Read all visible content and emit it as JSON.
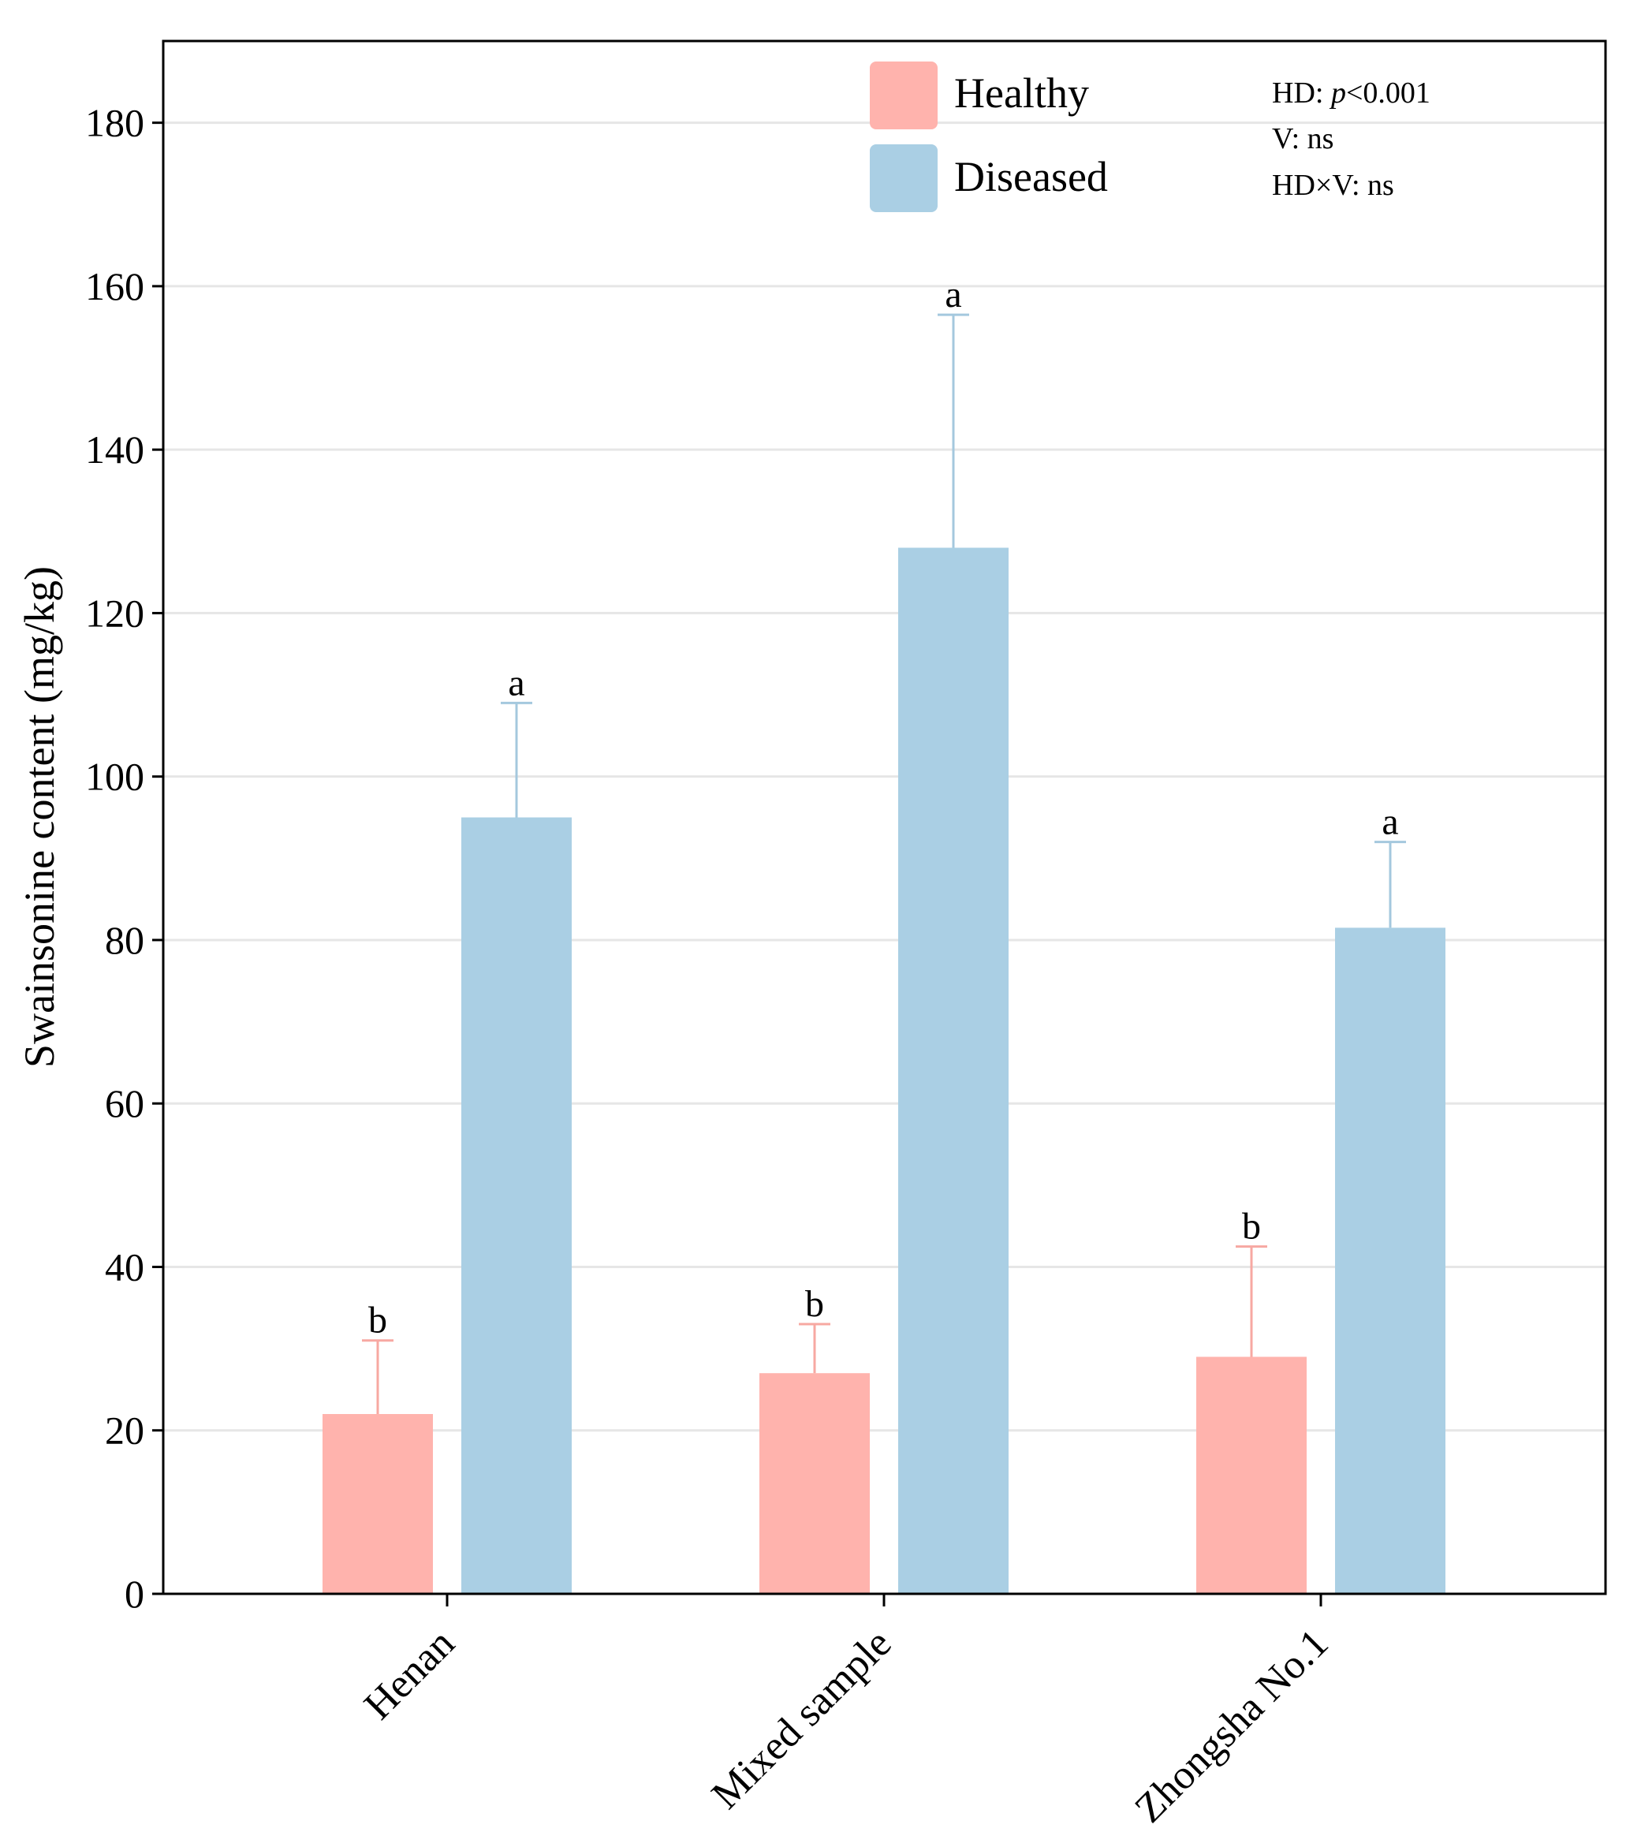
{
  "chart_data": {
    "type": "bar",
    "title": "",
    "xlabel": "",
    "ylabel": "Swainsonine content (mg/kg)",
    "ylim": [
      0,
      190
    ],
    "yticks": [
      0,
      20,
      40,
      60,
      80,
      100,
      120,
      140,
      160,
      180
    ],
    "grid": true,
    "legend_position": "top-center",
    "categories": [
      "Henan",
      "Mixed sample",
      "Zhongsha No.1"
    ],
    "series": [
      {
        "name": "Healthy",
        "color": "#ffb3ad",
        "values": [
          22,
          27,
          29
        ],
        "errors": [
          9,
          6,
          13.5
        ],
        "letters": [
          "b",
          "b",
          "b"
        ]
      },
      {
        "name": "Diseased",
        "color": "#aacfe4",
        "values": [
          95,
          128,
          81.5
        ],
        "errors": [
          14,
          28.5,
          10.5
        ],
        "letters": [
          "a",
          "a",
          "a"
        ]
      }
    ],
    "annotations": {
      "hd_prefix": "HD: ",
      "hd_p": "p",
      "hd_value": "<0.001",
      "v": "V: ns",
      "hdxv": "HD×V: ns"
    }
  }
}
